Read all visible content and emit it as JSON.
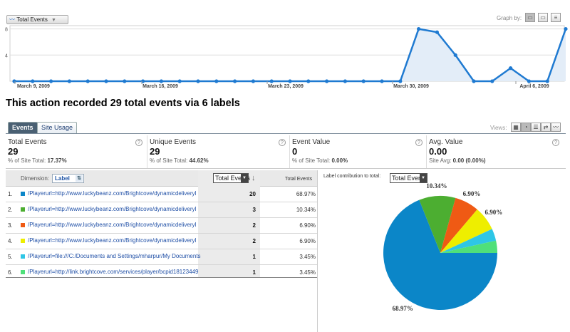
{
  "trend": {
    "metric_label": "Total Events",
    "graph_by_label": "Graph by:",
    "y_ticks": [
      "8",
      "4"
    ],
    "x_labels": [
      "March 9, 2009",
      "March 16, 2009",
      "March 23, 2009",
      "March 30, 2009",
      "April 6, 2009"
    ],
    "values": [
      0,
      0,
      0,
      0,
      0,
      0,
      0,
      0,
      0,
      0,
      0,
      0,
      0,
      0,
      0,
      0,
      0,
      0,
      0,
      0,
      0,
      0,
      8,
      7.5,
      4,
      0,
      0,
      2,
      0,
      0,
      8
    ],
    "ylim": [
      0,
      8.5
    ],
    "colors": {
      "line": "#1f7ad1",
      "fill": "#e3edf8",
      "grid": "#dddddd"
    }
  },
  "summary": {
    "title": "This action recorded 29 total events via 6 labels"
  },
  "tabs": {
    "events": "Events",
    "site_usage": "Site Usage"
  },
  "views": {
    "label": "Views:"
  },
  "scorecards": [
    {
      "label": "Total Events",
      "value": "29",
      "sub_text": "% of Site Total:",
      "sub_value": "17.37%"
    },
    {
      "label": "Unique Events",
      "value": "29",
      "sub_text": "% of Site Total:",
      "sub_value": "44.62%"
    },
    {
      "label": "Event Value",
      "value": "0",
      "sub_text": "% of Site Total:",
      "sub_value": "0.00%"
    },
    {
      "label": "Avg. Value",
      "value": "0.00",
      "sub_text": "Site Avg:",
      "sub_value": "0.00 (0.00%)"
    }
  ],
  "table": {
    "dimension_label": "Dimension:",
    "dimension_value": "Label",
    "sort_metric": "Total Events",
    "pct_header": "Total Events",
    "contribution_label": "Label contribution to total:",
    "pie_metric": "Total Events",
    "rows": [
      {
        "num": "1.",
        "label": "/Playerurl=http://www.luckybeanz.com/Brightcove/dynamicdeliveryl",
        "count": "20",
        "pct": "68.97%",
        "color": "#0b86c8"
      },
      {
        "num": "2.",
        "label": "/Playerurl=http://www.luckybeanz.com/Brightcove/dynamicdeliveryl",
        "count": "3",
        "pct": "10.34%",
        "color": "#4cae31"
      },
      {
        "num": "3.",
        "label": "/Playerurl=http://www.luckybeanz.com/Brightcove/dynamicdeliveryl",
        "count": "2",
        "pct": "6.90%",
        "color": "#ef5a14"
      },
      {
        "num": "4.",
        "label": "/Playerurl=http://www.luckybeanz.com/Brightcove/dynamicdeliveryl",
        "count": "2",
        "pct": "6.90%",
        "color": "#eeee00"
      },
      {
        "num": "5.",
        "label": "/Playerurl=file:///C:/Documents and Settings/mharpur/My Documents",
        "count": "1",
        "pct": "3.45%",
        "color": "#2ec6e6"
      },
      {
        "num": "6.",
        "label": "/Playerurl=http://link.brightcove.com/services/player/bcpid18123449",
        "count": "1",
        "pct": "3.45%",
        "color": "#4fe07a"
      }
    ]
  },
  "chart_data": {
    "type": "pie",
    "categories": [
      "1",
      "2",
      "3",
      "4",
      "5",
      "6"
    ],
    "values": [
      20,
      3,
      2,
      2,
      1,
      1
    ],
    "slice_labels": [
      "68.97%",
      "10.34%",
      "6.90%",
      "6.90%",
      "",
      ""
    ],
    "colors": [
      "#0b86c8",
      "#4cae31",
      "#ef5a14",
      "#eeee00",
      "#2ec6e6",
      "#4fe07a"
    ]
  }
}
